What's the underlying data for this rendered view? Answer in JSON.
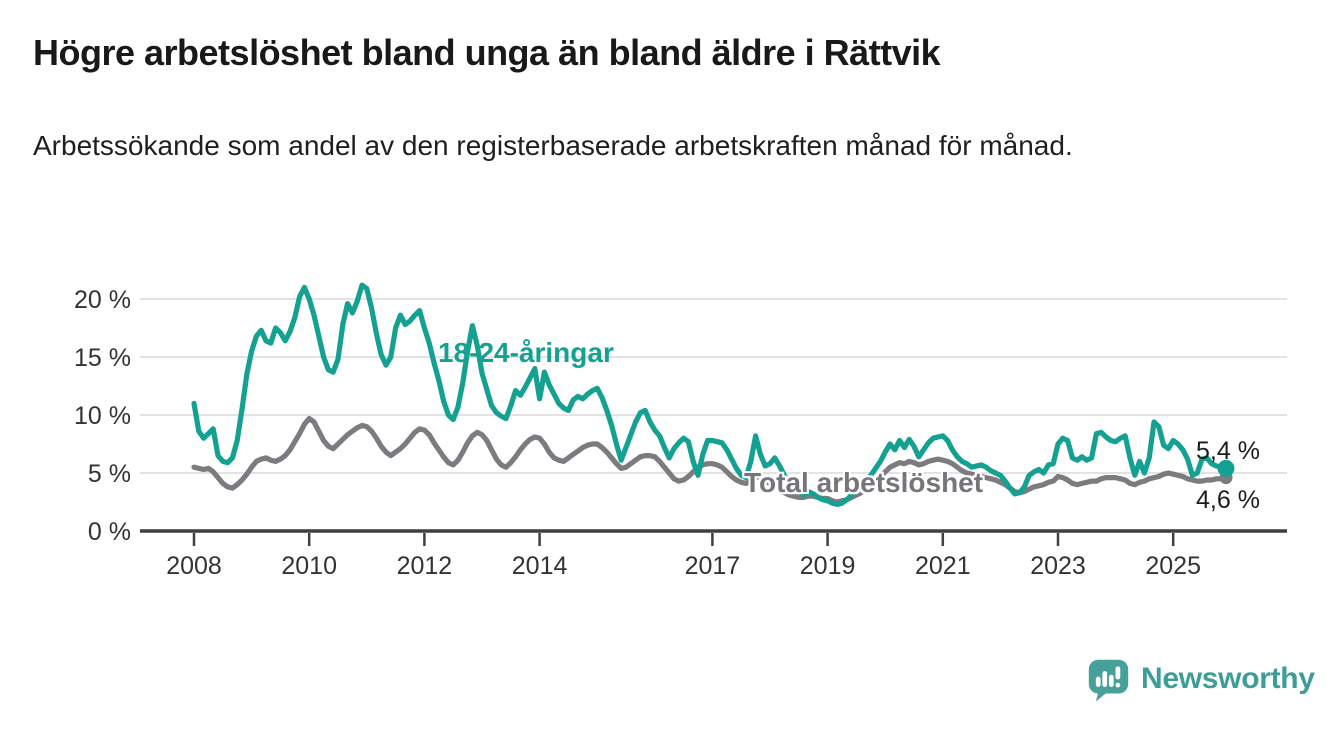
{
  "header": {
    "title": "Högre arbetslöshet bland unga än bland äldre i Rättvik",
    "subtitle": "Arbetssökande som andel av den registerbaserade arbetskraften månad för månad."
  },
  "chart_data": {
    "type": "line",
    "unit": "%",
    "frequency": "monthly",
    "x_start": "2008-01",
    "x_end": "2025-12",
    "grid": "horizontal",
    "grid_color": "#dadada",
    "axis_color": "#3f3f3f",
    "tick_label_color": "#333333",
    "ylim": [
      0,
      21.5
    ],
    "y_ticks": [
      {
        "value": 0,
        "label": "0 %"
      },
      {
        "value": 5,
        "label": "5 %"
      },
      {
        "value": 10,
        "label": "10 %"
      },
      {
        "value": 15,
        "label": "15 %"
      },
      {
        "value": 20,
        "label": "20 %"
      }
    ],
    "x_ticks": [
      {
        "year": 2008,
        "label": "2008"
      },
      {
        "year": 2010,
        "label": "2010"
      },
      {
        "year": 2012,
        "label": "2012"
      },
      {
        "year": 2014,
        "label": "2014"
      },
      {
        "year": 2017,
        "label": "2017"
      },
      {
        "year": 2019,
        "label": "2019"
      },
      {
        "year": 2021,
        "label": "2021"
      },
      {
        "year": 2023,
        "label": "2023"
      },
      {
        "year": 2025,
        "label": "2025"
      }
    ],
    "series": [
      {
        "name": "18-24-åringar",
        "color": "#14a192",
        "end_label": "5,4 %",
        "end_value": 5.4,
        "values": [
          11.0,
          8.6,
          8.0,
          8.4,
          8.8,
          6.5,
          6.0,
          5.9,
          6.3,
          7.8,
          10.5,
          13.5,
          15.5,
          16.8,
          17.3,
          16.4,
          16.2,
          17.5,
          17.1,
          16.4,
          17.2,
          18.4,
          20.2,
          21.0,
          20.0,
          18.6,
          16.8,
          15.0,
          13.9,
          13.7,
          14.8,
          17.8,
          19.6,
          18.8,
          19.8,
          21.2,
          20.9,
          19.2,
          17.0,
          15.2,
          14.3,
          15.0,
          17.5,
          18.6,
          17.8,
          18.1,
          18.6,
          19.0,
          17.5,
          16.2,
          14.5,
          13.0,
          11.2,
          10.0,
          9.6,
          10.7,
          12.8,
          15.5,
          17.7,
          16.0,
          13.6,
          12.2,
          10.8,
          10.2,
          9.9,
          9.7,
          10.8,
          12.1,
          11.7,
          12.4,
          13.2,
          14.0,
          11.4,
          13.7,
          12.6,
          11.8,
          11.0,
          10.6,
          10.4,
          11.3,
          11.6,
          11.4,
          11.8,
          12.1,
          12.3,
          11.5,
          10.4,
          9.1,
          7.5,
          6.1,
          7.2,
          8.3,
          9.4,
          10.2,
          10.4,
          9.4,
          8.7,
          8.2,
          7.2,
          6.3,
          7.1,
          7.6,
          8.0,
          7.7,
          6.0,
          4.8,
          6.6,
          7.8,
          7.8,
          7.7,
          7.6,
          7.0,
          6.2,
          5.4,
          4.8,
          4.6,
          6.0,
          8.2,
          6.6,
          5.6,
          5.8,
          6.3,
          5.6,
          4.8,
          4.2,
          3.8,
          3.4,
          3.1,
          3.4,
          3.2,
          2.9,
          2.7,
          2.6,
          2.4,
          2.3,
          2.4,
          2.7,
          3.1,
          3.5,
          3.9,
          4.3,
          4.8,
          5.4,
          6.0,
          6.8,
          7.5,
          7.0,
          7.8,
          7.2,
          7.9,
          7.3,
          6.4,
          7.0,
          7.6,
          8.0,
          8.1,
          8.2,
          7.8,
          7.0,
          6.4,
          6.0,
          5.8,
          5.5,
          5.6,
          5.7,
          5.5,
          5.2,
          5.0,
          4.8,
          4.3,
          3.7,
          3.2,
          3.3,
          3.8,
          4.8,
          5.1,
          5.3,
          5.0,
          5.7,
          5.8,
          7.5,
          8.0,
          7.8,
          6.3,
          6.1,
          6.4,
          6.1,
          6.3,
          8.4,
          8.5,
          8.1,
          7.8,
          7.7,
          8.0,
          8.2,
          6.3,
          4.8,
          6.0,
          5.0,
          6.3,
          9.4,
          9.0,
          7.4,
          7.1,
          7.8,
          7.5,
          7.0,
          6.2,
          4.8,
          5.0,
          6.2,
          6.3,
          5.8,
          5.6,
          5.5,
          5.4
        ]
      },
      {
        "name": "Total arbetslöshet",
        "color": "#7b7b80",
        "end_label": "4,6 %",
        "end_value": 4.6,
        "values": [
          5.5,
          5.4,
          5.3,
          5.4,
          5.1,
          4.6,
          4.1,
          3.8,
          3.7,
          4.0,
          4.4,
          4.9,
          5.5,
          6.0,
          6.2,
          6.3,
          6.1,
          6.0,
          6.2,
          6.5,
          7.0,
          7.7,
          8.4,
          9.2,
          9.7,
          9.4,
          8.6,
          7.8,
          7.3,
          7.1,
          7.5,
          7.9,
          8.3,
          8.6,
          8.9,
          9.1,
          9.0,
          8.6,
          8.0,
          7.3,
          6.8,
          6.5,
          6.8,
          7.1,
          7.5,
          8.0,
          8.5,
          8.8,
          8.7,
          8.3,
          7.6,
          7.0,
          6.4,
          5.9,
          5.7,
          6.1,
          6.8,
          7.6,
          8.2,
          8.5,
          8.3,
          7.8,
          7.0,
          6.2,
          5.7,
          5.5,
          5.9,
          6.4,
          7.0,
          7.5,
          7.9,
          8.1,
          8.0,
          7.5,
          6.8,
          6.3,
          6.1,
          6.0,
          6.3,
          6.6,
          6.9,
          7.2,
          7.4,
          7.5,
          7.5,
          7.2,
          6.8,
          6.3,
          5.8,
          5.4,
          5.5,
          5.8,
          6.1,
          6.4,
          6.5,
          6.5,
          6.4,
          6.0,
          5.5,
          5.0,
          4.5,
          4.3,
          4.4,
          4.7,
          5.1,
          5.5,
          5.7,
          5.8,
          5.8,
          5.7,
          5.5,
          5.1,
          4.7,
          4.4,
          4.2,
          4.1,
          4.3,
          4.7,
          4.6,
          4.3,
          4.1,
          3.9,
          3.6,
          3.3,
          3.1,
          3.0,
          2.9,
          2.9,
          3.0,
          3.0,
          2.9,
          2.8,
          2.8,
          2.6,
          2.5,
          2.6,
          2.7,
          2.9,
          3.1,
          3.3,
          3.6,
          3.9,
          4.3,
          4.7,
          5.1,
          5.5,
          5.7,
          5.9,
          5.8,
          6.0,
          5.9,
          5.7,
          5.8,
          6.0,
          6.1,
          6.2,
          6.1,
          6.0,
          5.8,
          5.5,
          5.2,
          5.0,
          4.9,
          4.8,
          4.7,
          4.6,
          4.5,
          4.4,
          4.2,
          4.0,
          3.7,
          3.4,
          3.3,
          3.4,
          3.6,
          3.8,
          3.9,
          4.0,
          4.2,
          4.3,
          4.7,
          4.6,
          4.4,
          4.1,
          4.0,
          4.1,
          4.2,
          4.3,
          4.3,
          4.5,
          4.6,
          4.6,
          4.6,
          4.5,
          4.4,
          4.1,
          4.0,
          4.2,
          4.3,
          4.5,
          4.6,
          4.7,
          4.9,
          5.0,
          4.9,
          4.8,
          4.7,
          4.5,
          4.4,
          4.3,
          4.3,
          4.4,
          4.4,
          4.5,
          4.5,
          4.6
        ]
      }
    ]
  },
  "footer": {
    "brand": "Newsworthy"
  }
}
